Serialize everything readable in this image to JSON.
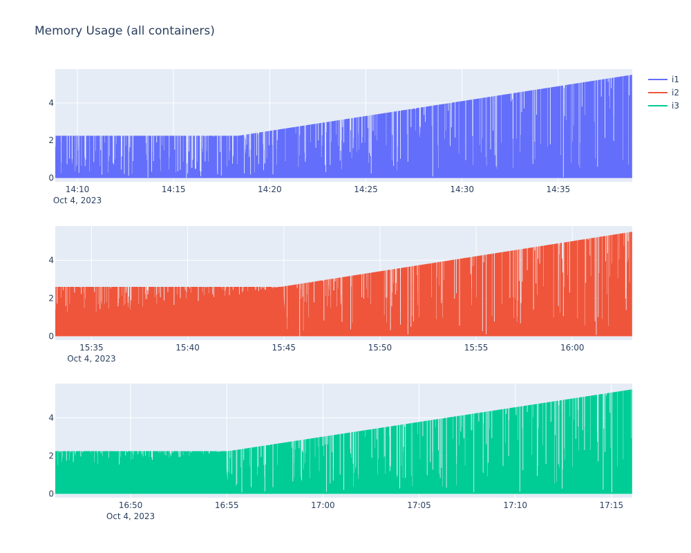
{
  "title": "Memory Usage (all containers)",
  "colors": {
    "plot_bg": "#E5ECF6",
    "grid": "#ffffff",
    "text": "#2a3f5f"
  },
  "legend": [
    {
      "name": "i1",
      "color": "#636efa"
    },
    {
      "name": "i2",
      "color": "#EF553B"
    },
    {
      "name": "i3",
      "color": "#00cc96"
    }
  ],
  "chart_data": [
    {
      "type": "area",
      "series": [
        {
          "name": "i1",
          "color": "#636efa"
        }
      ],
      "date_label": "Oct 4, 2023",
      "x_tick_labels": [
        "14:10",
        "14:15",
        "14:20",
        "14:25",
        "14:30",
        "14:35"
      ],
      "x_ticks": [
        "2023-10-04 14:10",
        "2023-10-04 14:15",
        "2023-10-04 14:20",
        "2023-10-04 14:25",
        "2023-10-04 14:30",
        "2023-10-04 14:35"
      ],
      "xlim": [
        "2023-10-04 14:08:51",
        "2023-10-04 14:38:51"
      ],
      "y_tick_labels": [
        "0",
        "2",
        "4"
      ],
      "ylim": [
        -0.2,
        5.8
      ],
      "envelope": {
        "x": [
          "2023-10-04 14:08:51",
          "2023-10-04 14:18:21",
          "2023-10-04 14:38:51"
        ],
        "y": [
          2.25,
          2.25,
          5.5
        ]
      },
      "min_y": 0
    },
    {
      "type": "area",
      "series": [
        {
          "name": "i2",
          "color": "#EF553B"
        }
      ],
      "date_label": "Oct 4, 2023",
      "x_tick_labels": [
        "15:35",
        "15:40",
        "15:45",
        "15:50",
        "15:55",
        "16:00"
      ],
      "x_ticks": [
        "2023-10-04 15:35",
        "2023-10-04 15:40",
        "2023-10-04 15:45",
        "2023-10-04 15:50",
        "2023-10-04 15:55",
        "2023-10-04 16:00"
      ],
      "xlim": [
        "2023-10-04 15:33:07",
        "2023-10-04 16:03:07"
      ],
      "y_tick_labels": [
        "0",
        "2",
        "4"
      ],
      "ylim": [
        -0.2,
        5.8
      ],
      "envelope": {
        "x": [
          "2023-10-04 15:33:07",
          "2023-10-04 15:44:50",
          "2023-10-04 16:03:07"
        ],
        "y": [
          2.6,
          2.6,
          5.5
        ]
      },
      "lower_band": {
        "x": [
          "2023-10-04 15:33:07",
          "2023-10-04 15:37:00",
          "2023-10-04 15:45:00"
        ],
        "y": [
          1.0,
          1.2,
          2.6
        ]
      },
      "min_y": 0
    },
    {
      "type": "area",
      "series": [
        {
          "name": "i3",
          "color": "#00cc96"
        }
      ],
      "date_label": "Oct 4, 2023",
      "x_tick_labels": [
        "16:50",
        "16:55",
        "17:00",
        "17:05",
        "17:10",
        "17:15"
      ],
      "x_ticks": [
        "2023-10-04 16:50",
        "2023-10-04 16:55",
        "2023-10-04 17:00",
        "2023-10-04 17:05",
        "2023-10-04 17:10",
        "2023-10-04 17:15"
      ],
      "xlim": [
        "2023-10-04 16:46:05",
        "2023-10-04 17:16:05"
      ],
      "y_tick_labels": [
        "0",
        "2",
        "4"
      ],
      "ylim": [
        -0.2,
        5.8
      ],
      "envelope": {
        "x": [
          "2023-10-04 16:46:05",
          "2023-10-04 16:55:05",
          "2023-10-04 17:16:05"
        ],
        "y": [
          2.25,
          2.25,
          5.5
        ]
      },
      "lower_band": {
        "x": [
          "2023-10-04 16:46:05",
          "2023-10-04 16:49:00",
          "2023-10-04 16:55:00"
        ],
        "y": [
          1.4,
          1.5,
          2.2
        ]
      },
      "min_y": 0
    }
  ]
}
